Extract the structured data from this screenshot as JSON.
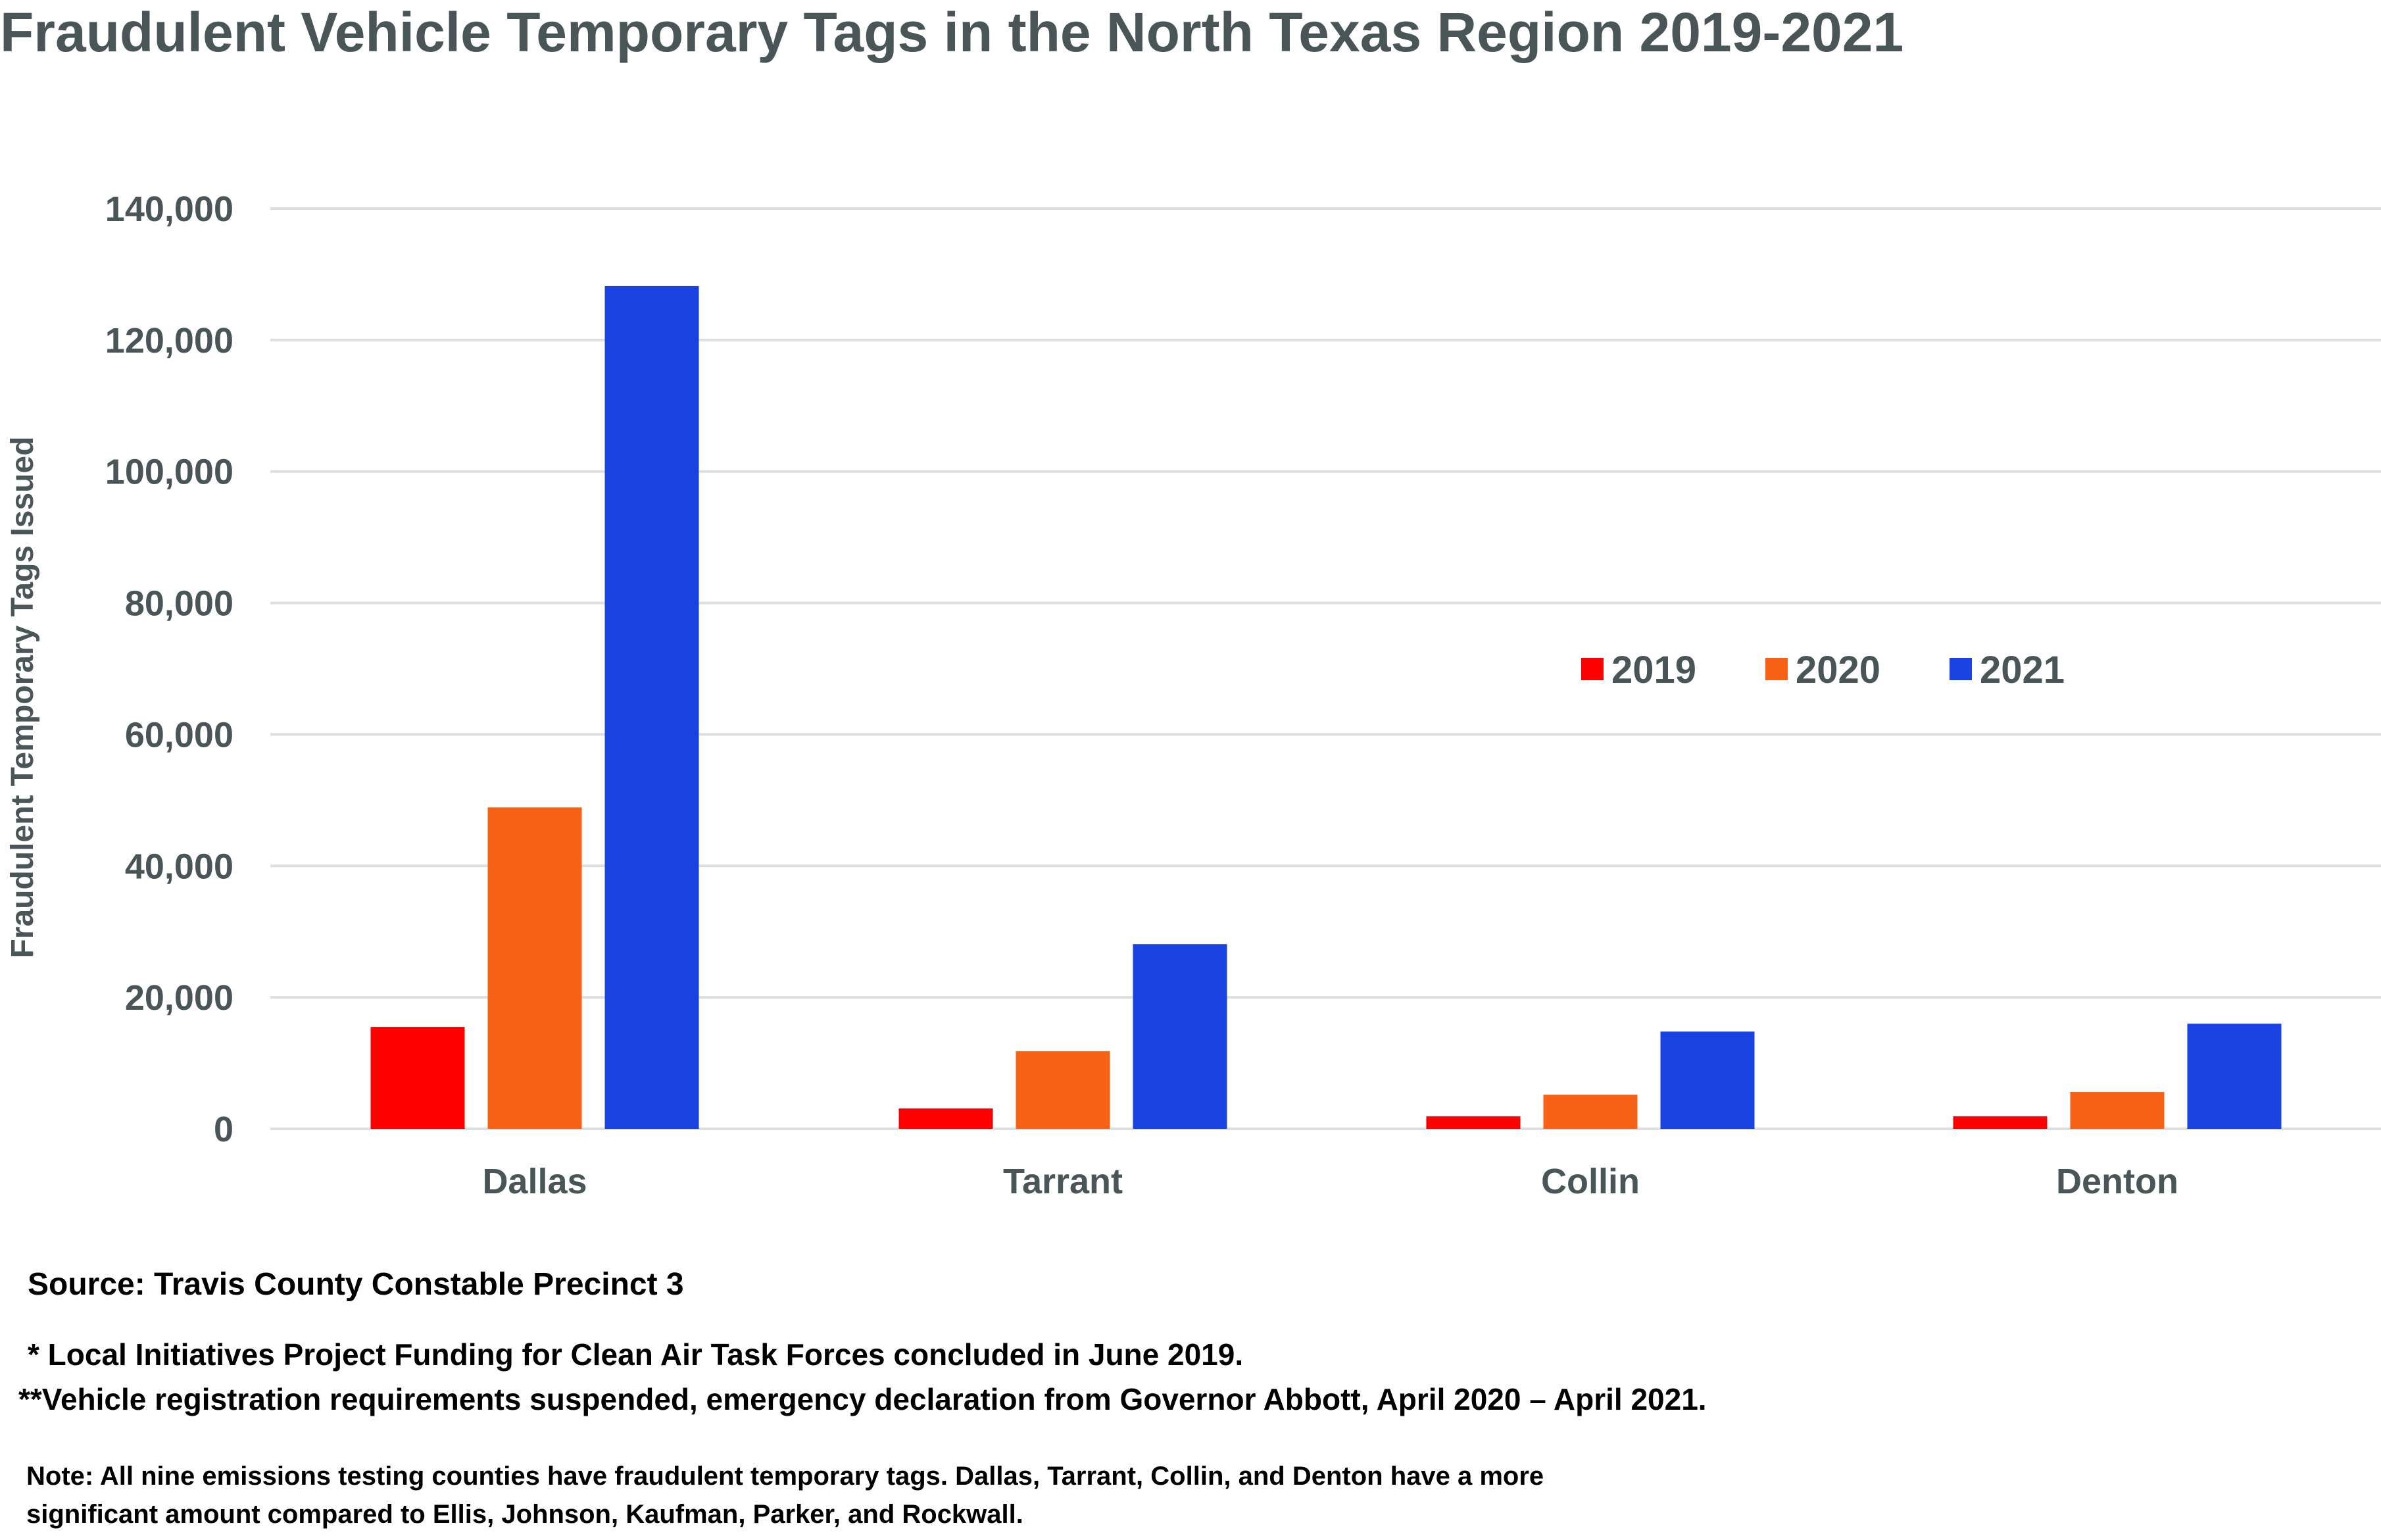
{
  "chart_data": {
    "type": "bar",
    "title": "Fraudulent Vehicle Temporary Tags in the North Texas Region 2019-2021",
    "xlabel": "",
    "ylabel": "Fraudulent Temporary Tags Issued",
    "ylim": [
      0,
      140000
    ],
    "yticks": [
      "0",
      "20,000",
      "40,000",
      "60,000",
      "80,000",
      "100,000",
      "120,000",
      "140,000"
    ],
    "grid": true,
    "legend_position": "center-right",
    "categories": [
      "Dallas",
      "Tarrant",
      "Collin",
      "Denton"
    ],
    "series": [
      {
        "name": "2019",
        "color": "#ff0000",
        "values": [
          15500,
          3100,
          1900,
          1900
        ]
      },
      {
        "name": "2020",
        "color": "#f66116",
        "values": [
          48900,
          11800,
          5200,
          5600
        ]
      },
      {
        "name": "2021",
        "color": "#1a42e0",
        "values": [
          128200,
          28100,
          14800,
          16000
        ]
      }
    ]
  },
  "footer": {
    "source": "Source: Travis County Constable Precinct 3",
    "footnote1": "* Local Initiatives Project Funding for Clean Air Task Forces concluded in June 2019.",
    "footnote2": "**Vehicle registration requirements suspended, emergency declaration from Governor Abbott, April 2020 – April 2021.",
    "note_line1": "Note: All nine emissions testing counties have fraudulent temporary tags.  Dallas, Tarrant, Collin, and Denton have a more",
    "note_line2": "significant amount compared to Ellis, Johnson, Kaufman, Parker, and Rockwall."
  }
}
